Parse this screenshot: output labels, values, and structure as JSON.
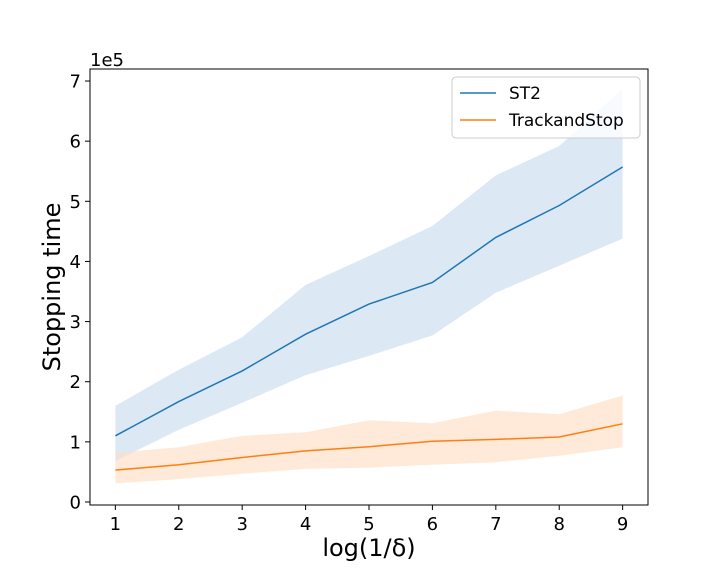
{
  "chart_data": {
    "type": "line",
    "xlabel": "log(1/δ)",
    "ylabel": "Stopping time",
    "y_scale_label": "1e5",
    "y_scale_factor": 100000,
    "xlim": [
      0.6,
      9.4
    ],
    "ylim": [
      -5000,
      720000
    ],
    "x_ticks": [
      1,
      2,
      3,
      4,
      5,
      6,
      7,
      8,
      9
    ],
    "x_tick_labels": [
      "1",
      "2",
      "3",
      "4",
      "5",
      "6",
      "7",
      "8",
      "9"
    ],
    "y_ticks": [
      0,
      100000,
      200000,
      300000,
      400000,
      500000,
      600000,
      700000
    ],
    "y_tick_labels": [
      "0",
      "1",
      "2",
      "3",
      "4",
      "5",
      "6",
      "7"
    ],
    "grid": false,
    "legend_position": "top-right",
    "x": [
      1,
      2,
      3,
      4,
      5,
      6,
      7,
      8,
      9
    ],
    "series": [
      {
        "name": "ST2",
        "color": "#1f77b4",
        "band_color": "#c6d9ee",
        "values": [
          110000,
          167000,
          218000,
          279000,
          329000,
          365000,
          440000,
          493000,
          557000
        ],
        "lower": [
          68000,
          120000,
          165000,
          211000,
          243000,
          277000,
          348000,
          393000,
          438000
        ],
        "upper": [
          160000,
          220000,
          274000,
          361000,
          409000,
          459000,
          543000,
          592000,
          687000
        ]
      },
      {
        "name": "TrackandStop",
        "color": "#ff7f0e",
        "band_color": "#ffdcc2",
        "values": [
          53000,
          62000,
          74000,
          85000,
          92000,
          101000,
          104000,
          108000,
          130000
        ],
        "lower": [
          31000,
          38000,
          47000,
          55000,
          57000,
          62000,
          66000,
          77000,
          91000
        ],
        "upper": [
          82000,
          91000,
          110000,
          116000,
          136000,
          131000,
          152000,
          146000,
          177000
        ]
      }
    ]
  }
}
